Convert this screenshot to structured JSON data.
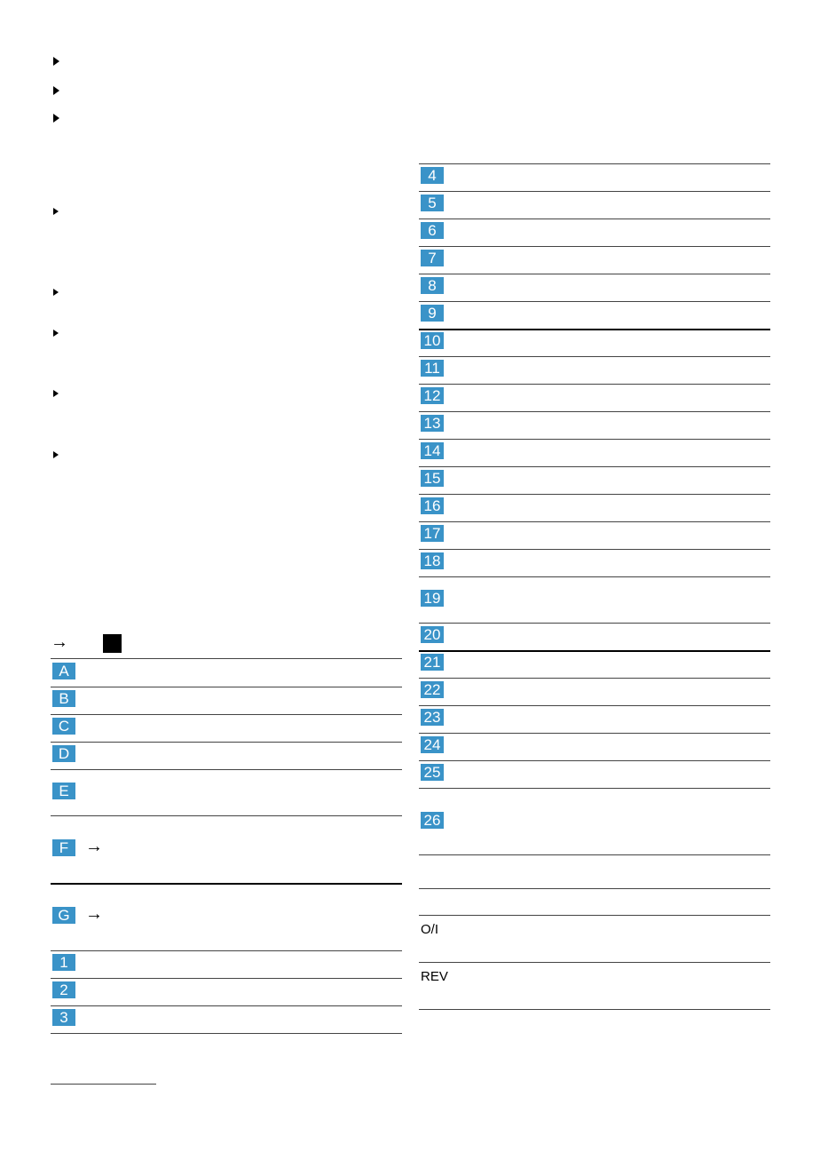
{
  "left_table": {
    "header_arrow": "→",
    "rows": [
      {
        "label": "A"
      },
      {
        "label": "B"
      },
      {
        "label": "C"
      },
      {
        "label": "D"
      },
      {
        "label": "E"
      },
      {
        "label": "F",
        "arrow": "→"
      },
      {
        "label": "G",
        "arrow": "→"
      },
      {
        "label": "1"
      },
      {
        "label": "2"
      },
      {
        "label": "3"
      }
    ]
  },
  "right_table": {
    "rows": [
      {
        "label": "4"
      },
      {
        "label": "5"
      },
      {
        "label": "6"
      },
      {
        "label": "7"
      },
      {
        "label": "8"
      },
      {
        "label": "9"
      },
      {
        "label": "10"
      },
      {
        "label": "11"
      },
      {
        "label": "12"
      },
      {
        "label": "13"
      },
      {
        "label": "14"
      },
      {
        "label": "15"
      },
      {
        "label": "16"
      },
      {
        "label": "17"
      },
      {
        "label": "18"
      },
      {
        "label": "19"
      },
      {
        "label": "20"
      },
      {
        "label": "21"
      },
      {
        "label": "22"
      },
      {
        "label": "23"
      },
      {
        "label": "24"
      },
      {
        "label": "25"
      },
      {
        "label": "26"
      }
    ]
  },
  "symbol_table": {
    "rows": [
      {
        "symbol": "O/I"
      },
      {
        "symbol": "REV"
      }
    ]
  }
}
